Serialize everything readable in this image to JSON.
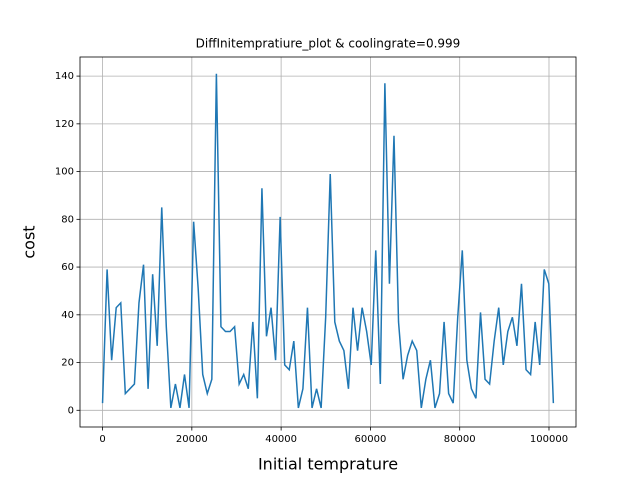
{
  "chart_data": {
    "type": "line",
    "title": "DiffInitempratiure_plot & coolingrate=0.999",
    "x_label": "Initial temprature",
    "y_label": "cost",
    "x": [
      0,
      1020,
      2040,
      3060,
      4080,
      5100,
      6120,
      7140,
      8160,
      9180,
      10200,
      11220,
      12240,
      13260,
      14280,
      15300,
      16320,
      17340,
      18360,
      19380,
      20400,
      21420,
      22440,
      23460,
      24480,
      25500,
      26520,
      27540,
      28560,
      29580,
      30600,
      31620,
      32640,
      33660,
      34680,
      35700,
      36720,
      37740,
      38760,
      39780,
      40800,
      41820,
      42840,
      43860,
      44880,
      45900,
      46920,
      47940,
      48960,
      49980,
      51000,
      52020,
      53040,
      54060,
      55080,
      56100,
      57120,
      58140,
      59160,
      60180,
      61200,
      62220,
      63240,
      64260,
      65280,
      66300,
      67320,
      68340,
      69360,
      70380,
      71400,
      72420,
      73440,
      74460,
      75480,
      76500,
      77520,
      78540,
      79560,
      80580,
      81600,
      82620,
      83640,
      84660,
      85680,
      86700,
      87720,
      88740,
      89760,
      90780,
      91800,
      92820,
      93840,
      94860,
      95880,
      96900,
      97920,
      98940,
      99960,
      100980
    ],
    "series": [
      {
        "name": "cost",
        "color": "#1f77b4",
        "values": [
          3,
          59,
          21,
          43,
          45,
          7,
          9,
          11,
          45,
          61,
          9,
          57,
          27,
          85,
          35,
          1,
          11,
          1,
          15,
          1,
          79,
          51,
          15,
          7,
          13,
          141,
          35,
          33,
          33,
          35,
          11,
          15,
          9,
          37,
          5,
          93,
          31,
          43,
          21,
          81,
          19,
          17,
          29,
          1,
          9,
          43,
          1,
          9,
          1,
          39,
          99,
          37,
          29,
          25,
          9,
          43,
          25,
          43,
          33,
          19,
          67,
          11,
          137,
          53,
          115,
          37,
          13,
          23,
          29,
          25,
          1,
          13,
          21,
          1,
          7,
          37,
          7,
          3,
          39,
          67,
          21,
          9,
          5,
          41,
          13,
          11,
          29,
          43,
          19,
          33,
          39,
          27,
          53,
          17,
          15,
          37,
          19,
          59,
          53,
          3
        ]
      }
    ],
    "xlim": [
      -5050,
      106050
    ],
    "ylim": [
      -7,
      148
    ],
    "xticks": [
      0,
      20000,
      40000,
      60000,
      80000,
      100000
    ],
    "yticks": [
      0,
      20,
      40,
      60,
      80,
      100,
      120,
      140
    ],
    "grid": true
  }
}
